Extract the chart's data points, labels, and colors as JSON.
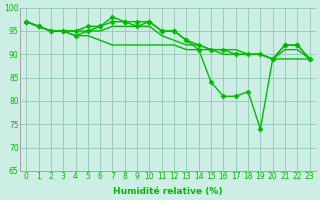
{
  "lines": [
    {
      "x": [
        0,
        1,
        2,
        3,
        4,
        5,
        6,
        7,
        8,
        9,
        10,
        11,
        12,
        13,
        14,
        15,
        16,
        17,
        18,
        19,
        20,
        21,
        22,
        23
      ],
      "y": [
        97,
        96,
        95,
        95,
        94,
        95,
        96,
        98,
        97,
        96,
        97,
        95,
        95,
        93,
        91,
        84,
        81,
        81,
        82,
        74,
        89,
        92,
        92,
        89
      ],
      "marker": "D",
      "lw": 1.0,
      "ms": 2.5
    },
    {
      "x": [
        0,
        1,
        2,
        3,
        4,
        5,
        6,
        7,
        8,
        9,
        10,
        11,
        12,
        13,
        14,
        15,
        16,
        17,
        18,
        19,
        20,
        21,
        22,
        23
      ],
      "y": [
        97,
        96,
        95,
        95,
        95,
        96,
        96,
        97,
        97,
        97,
        97,
        95,
        95,
        93,
        92,
        91,
        91,
        90,
        90,
        90,
        89,
        92,
        92,
        89
      ],
      "marker": "D",
      "lw": 1.0,
      "ms": 2.5
    },
    {
      "x": [
        0,
        1,
        2,
        3,
        4,
        5,
        6,
        7,
        8,
        9,
        10,
        11,
        12,
        13,
        14,
        15,
        16,
        17,
        18,
        19,
        20,
        21,
        22,
        23
      ],
      "y": [
        97,
        96,
        95,
        95,
        95,
        95,
        95,
        96,
        96,
        96,
        96,
        94,
        93,
        92,
        92,
        91,
        91,
        91,
        90,
        90,
        89,
        91,
        91,
        89
      ],
      "marker": null,
      "lw": 1.0,
      "ms": 0
    },
    {
      "x": [
        0,
        1,
        2,
        3,
        4,
        5,
        6,
        7,
        8,
        9,
        10,
        11,
        12,
        13,
        14,
        15,
        16,
        17,
        18,
        19,
        20,
        21,
        22,
        23
      ],
      "y": [
        97,
        96,
        95,
        95,
        94,
        94,
        93,
        92,
        92,
        92,
        92,
        92,
        92,
        91,
        91,
        91,
        90,
        90,
        90,
        90,
        89,
        89,
        89,
        89
      ],
      "marker": null,
      "lw": 1.0,
      "ms": 0
    }
  ],
  "line_color": "#00bb00",
  "bg_color": "#cceee4",
  "grid_color": "#99ccbb",
  "xlabel": "Humidité relative (%)",
  "ylim": [
    65,
    100
  ],
  "xlim": [
    -0.5,
    23.5
  ],
  "yticks": [
    65,
    70,
    75,
    80,
    85,
    90,
    95,
    100
  ],
  "xticks": [
    0,
    1,
    2,
    3,
    4,
    5,
    6,
    7,
    8,
    9,
    10,
    11,
    12,
    13,
    14,
    15,
    16,
    17,
    18,
    19,
    20,
    21,
    22,
    23
  ],
  "tick_fontsize": 5.5,
  "xlabel_fontsize": 6.5
}
